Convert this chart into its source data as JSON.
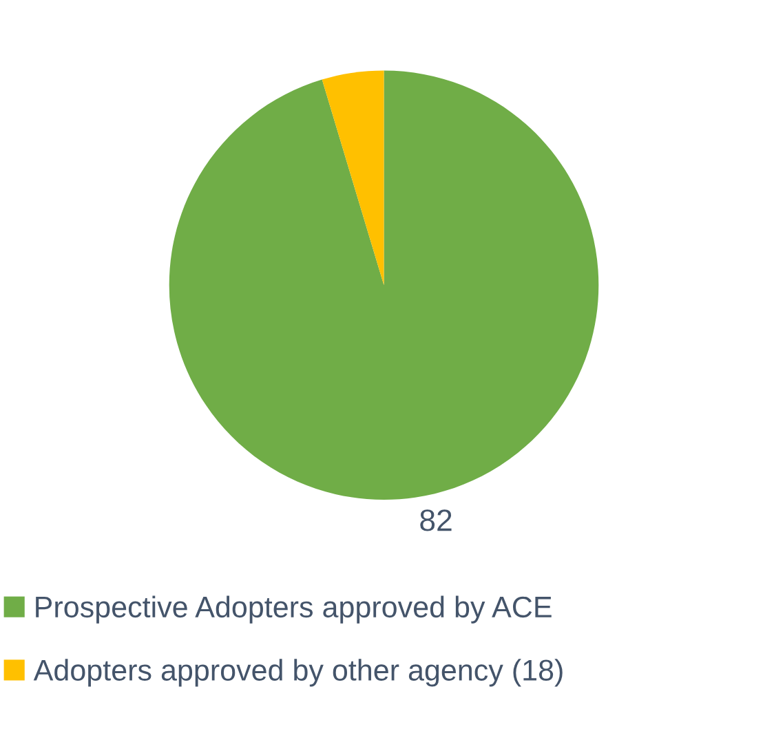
{
  "chart_data": {
    "type": "pie",
    "categories": [
      "Prospective Adopters approved by ACE",
      "Adopters approved by other agency (18)"
    ],
    "values": [
      82,
      4
    ],
    "colors": [
      "#70ad47",
      "#ffc000"
    ],
    "value_labels": [
      "82",
      null
    ],
    "legend": "bottom"
  }
}
